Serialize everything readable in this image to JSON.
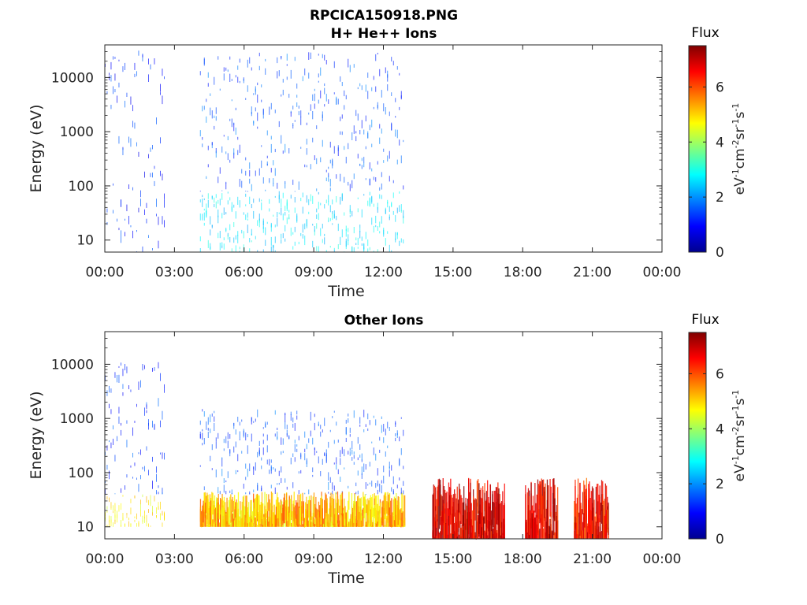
{
  "figure": {
    "filename": "RPCICA150918.PNG",
    "panel1_title": "H+ He++ Ions",
    "panel2_title": "Other Ions"
  },
  "colorbar": {
    "title": "Flux",
    "label": "eV-1cm-2sr-1s-1",
    "ticks": [
      0,
      2,
      4,
      6
    ],
    "range": [
      0,
      7.5
    ],
    "colormap": "jet"
  },
  "chart_data": [
    {
      "type": "heatmap",
      "title": "H+ He++ Ions",
      "xlabel": "Time",
      "ylabel": "Energy (eV)",
      "xticks": [
        "00:00",
        "03:00",
        "06:00",
        "09:00",
        "12:00",
        "15:00",
        "18:00",
        "21:00",
        "00:00"
      ],
      "xlim_hours": [
        0,
        24
      ],
      "yscale": "log",
      "ylim": [
        6,
        40000
      ],
      "yticks": [
        10,
        100,
        1000,
        10000
      ],
      "colorbar_range": [
        0,
        7.5
      ],
      "data_intervals_hours": [
        [
          0,
          2.6
        ],
        [
          4.1,
          12.9
        ]
      ],
      "bands": [
        {
          "t_start": 0,
          "t_end": 2.6,
          "e_min": 6,
          "e_max": 35000,
          "flux": 1.2
        },
        {
          "t_start": 4.1,
          "t_end": 12.9,
          "e_min": 80,
          "e_max": 30000,
          "flux": 1.5
        },
        {
          "t_start": 4.1,
          "t_end": 12.9,
          "e_min": 6,
          "e_max": 80,
          "flux": 2.6
        }
      ]
    },
    {
      "type": "heatmap",
      "title": "Other Ions",
      "xlabel": "Time",
      "ylabel": "Energy (eV)",
      "xticks": [
        "00:00",
        "03:00",
        "06:00",
        "09:00",
        "12:00",
        "15:00",
        "18:00",
        "21:00",
        "00:00"
      ],
      "xlim_hours": [
        0,
        24
      ],
      "yscale": "log",
      "ylim": [
        6,
        40000
      ],
      "yticks": [
        10,
        100,
        1000,
        10000
      ],
      "colorbar_range": [
        0,
        7.5
      ],
      "data_intervals_hours": [
        [
          0,
          2.6
        ],
        [
          4.1,
          12.9
        ],
        [
          14.1,
          17.2
        ],
        [
          18.1,
          19.5
        ],
        [
          20.2,
          21.7
        ]
      ],
      "bands": [
        {
          "t_start": 0,
          "t_end": 2.6,
          "e_min": 40,
          "e_max": 11000,
          "flux": 1.3
        },
        {
          "t_start": 0,
          "t_end": 2.6,
          "e_min": 10,
          "e_max": 40,
          "flux": 4.8
        },
        {
          "t_start": 4.1,
          "t_end": 12.9,
          "e_min": 40,
          "e_max": 1500,
          "flux": 1.5
        },
        {
          "t_start": 4.1,
          "t_end": 12.9,
          "e_min": 10,
          "e_max": 45,
          "flux": 5.2
        },
        {
          "t_start": 14.1,
          "t_end": 17.2,
          "e_min": 6,
          "e_max": 80,
          "flux": 6.8
        },
        {
          "t_start": 18.1,
          "t_end": 19.5,
          "e_min": 6,
          "e_max": 80,
          "flux": 6.8
        },
        {
          "t_start": 20.2,
          "t_end": 21.7,
          "e_min": 6,
          "e_max": 80,
          "flux": 6.5
        }
      ]
    }
  ]
}
